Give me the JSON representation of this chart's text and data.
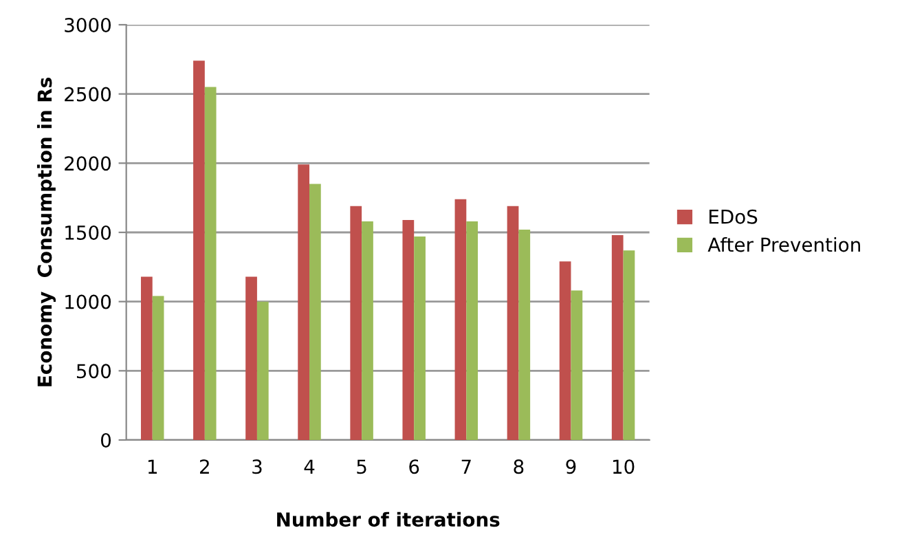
{
  "chart_data": {
    "type": "bar",
    "xlabel": "Number of iterations",
    "ylabel": "Economy  Consumption in Rs",
    "categories": [
      "1",
      "2",
      "3",
      "4",
      "5",
      "6",
      "7",
      "8",
      "9",
      "10"
    ],
    "series": [
      {
        "name": "EDoS",
        "color": "#c0504d",
        "values": [
          1180,
          2740,
          1180,
          1990,
          1690,
          1590,
          1740,
          1690,
          1290,
          1480
        ]
      },
      {
        "name": "After Prevention",
        "color": "#9bbb59",
        "values": [
          1040,
          2550,
          1000,
          1850,
          1580,
          1470,
          1580,
          1520,
          1080,
          1370
        ]
      }
    ],
    "ylim": [
      0,
      3000
    ],
    "yticks": [
      0,
      500,
      1000,
      1500,
      2000,
      2500,
      3000
    ],
    "grid": "y",
    "legend": "right"
  }
}
